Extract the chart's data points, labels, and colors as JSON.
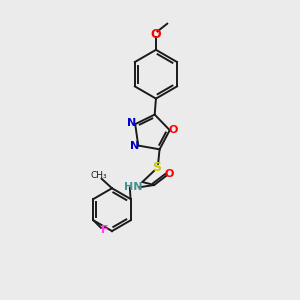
{
  "background_color": "#ebebeb",
  "figure_size": [
    3.0,
    3.0
  ],
  "dpi": 100,
  "colors": {
    "black": "#1a1a1a",
    "N": "#0000cc",
    "O": "#ff0000",
    "S": "#cccc00",
    "F": "#ff44ee",
    "NH": "#4a9090",
    "methyl": "#1a1a1a"
  },
  "lw": 1.4,
  "fs": 7.5
}
